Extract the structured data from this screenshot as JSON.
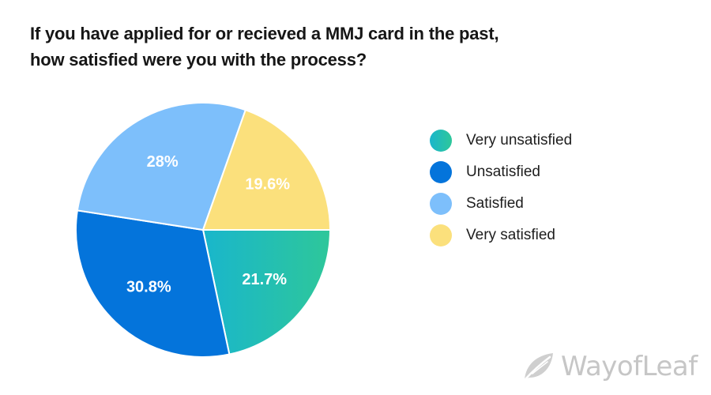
{
  "chart_data": {
    "type": "pie",
    "title": [
      "If you have applied for or recieved a MMJ card in the past,",
      "how satisfied were you with the process?"
    ],
    "slices": [
      {
        "name": "Very unsatisfied",
        "value": 21.7,
        "label": "21.7%",
        "color": "#1ebbb0",
        "gradient": [
          "#19b6cc",
          "#2ec79a"
        ]
      },
      {
        "name": "Unsatisfied",
        "value": 30.8,
        "label": "30.8%",
        "color": "#0474db"
      },
      {
        "name": "Satisfied",
        "value": 28,
        "label": "28%",
        "color": "#7dbffb"
      },
      {
        "name": "Very satisfied",
        "value": 19.6,
        "label": "19.6%",
        "color": "#fbe07c"
      }
    ],
    "start_angle_deg": 0,
    "direction": "clockwise",
    "legend_position": "right"
  },
  "watermark": {
    "text": "WayofLeaf",
    "icon": "leaf-icon",
    "color": "#c6c6c6"
  }
}
